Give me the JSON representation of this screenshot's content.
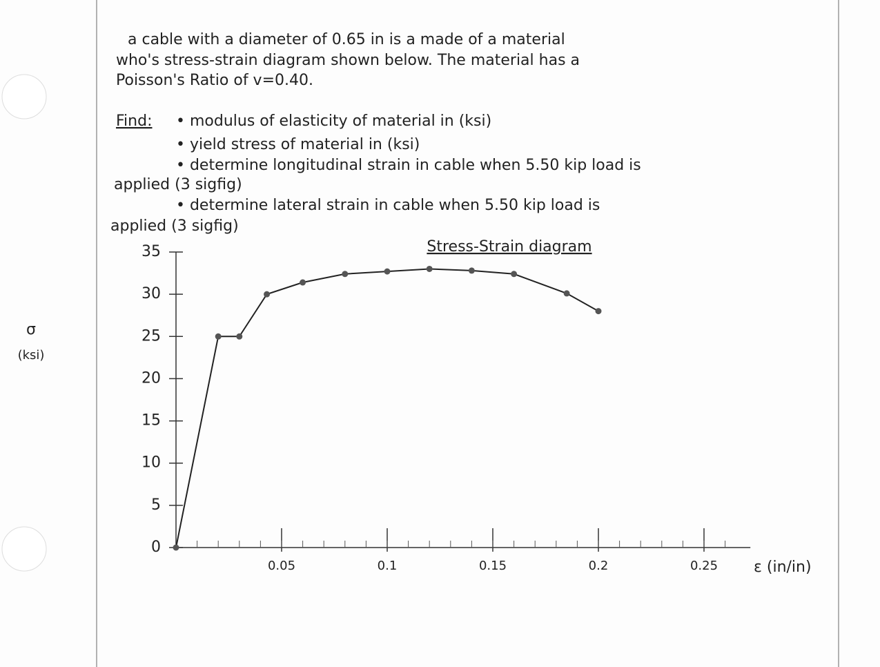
{
  "problem": {
    "statement": [
      "a cable with a diameter of 0.65 in is a made of a material",
      "who's stress-strain diagram shown below. The material has a",
      "Poisson's Ratio of v=0.40."
    ],
    "find_label": "Find:",
    "find": [
      "• modulus of elasticity of material in (ksi)",
      "• yield stress of material in (ksi)",
      "• determine longitudinal strain in cable when 5.50 kip load is",
      "applied (3 sigfig)",
      "• determine lateral strain in cable when 5.50 kip load is",
      "applied (3 sigfig)"
    ]
  },
  "chart_data": {
    "type": "line",
    "title": "Stress-Strain diagram",
    "y_label": "σ",
    "y_unit": "(ksi)",
    "x_label": "ε (in/in)",
    "x": [
      0,
      0.02,
      0.03,
      0.043,
      0.06,
      0.08,
      0.1,
      0.12,
      0.14,
      0.16,
      0.185,
      0.2
    ],
    "series": [
      {
        "color": "#222222",
        "values": [
          0,
          25,
          25,
          30,
          31.4,
          32.4,
          32.7,
          33,
          32.8,
          32.4,
          30.1,
          28
        ]
      }
    ],
    "xlim": [
      0,
      0.27
    ],
    "ylim": [
      0,
      35
    ],
    "xticks": [
      0.05,
      0.1,
      0.15,
      0.2,
      0.25
    ],
    "yticks": [
      0,
      5,
      10,
      15,
      20,
      25,
      30,
      35
    ]
  }
}
